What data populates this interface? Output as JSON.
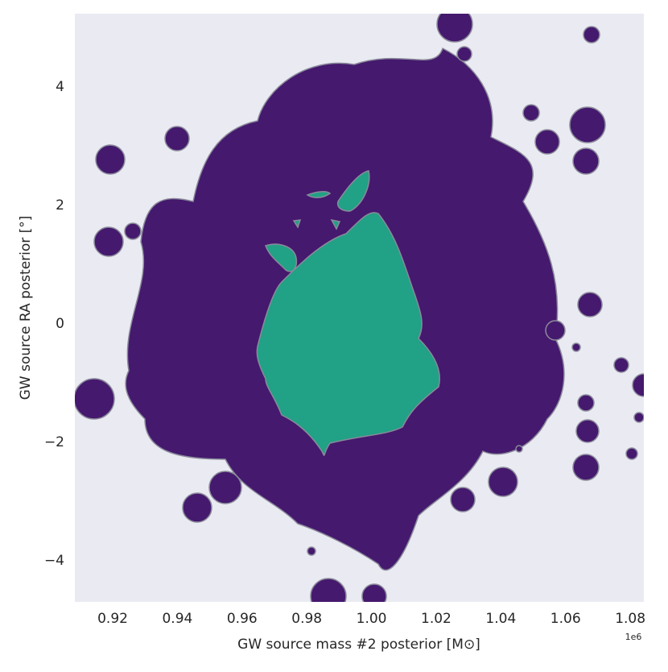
{
  "chart_data": {
    "type": "contour",
    "xlabel": "GW source mass #2 posterior [M⊙]",
    "ylabel": "GW source RA posterior [°]",
    "x_offset_label": "1e6",
    "xlim": [
      0.9083,
      1.0842
    ],
    "ylim": [
      -4.694,
      5.238
    ],
    "xticks": [
      0.92,
      0.94,
      0.96,
      0.98,
      {
        "value": 1,
        "label": "1.00"
      },
      1.02,
      1.04,
      1.06,
      1.08
    ],
    "yticks": [
      {
        "value": -4,
        "label": "−4"
      },
      {
        "value": -2,
        "label": "−2"
      },
      0,
      2,
      4
    ],
    "level_colors": [
      "#45196e",
      "#21a186"
    ],
    "line_color": "#8a8a9a",
    "background": "#eaeaf2",
    "grid": false
  }
}
